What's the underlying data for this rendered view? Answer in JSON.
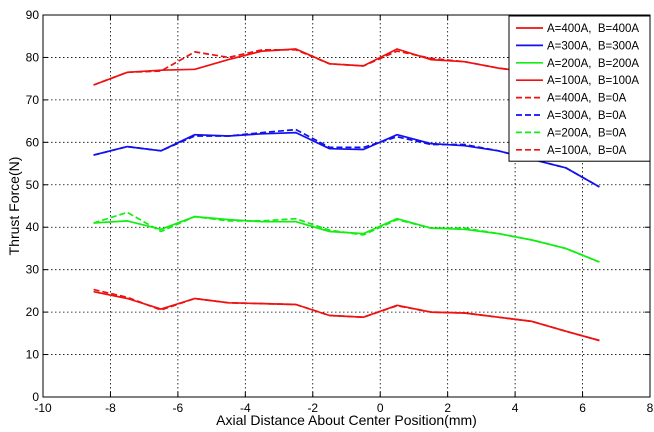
{
  "chart_data": {
    "type": "line",
    "xlabel": "Axial Distance About Center Position(mm)",
    "ylabel": "Thrust Force(N)",
    "xlim": [
      -10,
      8
    ],
    "ylim": [
      0,
      90
    ],
    "x_ticks": [
      -10,
      -8,
      -6,
      -4,
      -2,
      0,
      2,
      4,
      6,
      8
    ],
    "y_ticks": [
      0,
      10,
      20,
      30,
      40,
      50,
      60,
      70,
      80,
      90
    ],
    "grid": true,
    "legend_position": "top-right",
    "series": [
      {
        "name": "A=400A,  B=400A",
        "color": "#ee1111",
        "dash": "solid",
        "x": [
          -8.5,
          -7.5,
          -6.5,
          -5.5,
          -4.5,
          -3.5,
          -2.5,
          -1.5,
          -0.5,
          0.5,
          1.5,
          2.5,
          3.5,
          4.5
        ],
        "y": [
          73.5,
          76.5,
          77,
          77.2,
          79.5,
          81.5,
          82,
          78.5,
          78,
          82,
          79.5,
          79,
          77.5,
          76.5
        ]
      },
      {
        "name": "A=300A,  B=300A",
        "color": "#1111ee",
        "dash": "solid",
        "x": [
          -8.5,
          -7.5,
          -6.5,
          -5.5,
          -4.5,
          -3.5,
          -2.5,
          -1.5,
          -0.5,
          0.5,
          1.5,
          2.5,
          3.5,
          4.5,
          5.5,
          6.5
        ],
        "y": [
          57,
          59,
          58,
          61.8,
          61.5,
          62,
          62.3,
          58.5,
          58.3,
          61.8,
          59.7,
          59.2,
          58,
          56,
          54,
          49.5
        ]
      },
      {
        "name": "A=200A,  B=200A",
        "color": "#11ee11",
        "dash": "solid",
        "x": [
          -8.5,
          -7.5,
          -6.5,
          -5.5,
          -4.5,
          -3.5,
          -2.5,
          -1.5,
          -0.5,
          0.5,
          1.5,
          2.5,
          3.5,
          4.5,
          5.5,
          6.5
        ],
        "y": [
          41,
          41.5,
          39.5,
          42.5,
          41.8,
          41.3,
          41.3,
          39,
          38.5,
          42,
          39.8,
          39.5,
          38.5,
          37,
          35,
          31.8
        ]
      },
      {
        "name": "A=100A,  B=100A",
        "color": "#ee1111",
        "dash": "solid",
        "x": [
          -8.5,
          -7.5,
          -6.5,
          -5.5,
          -4.5,
          -3.5,
          -2.5,
          -1.5,
          -0.5,
          0.5,
          1.5,
          2.5,
          3.5,
          4.5,
          5.5,
          6.5
        ],
        "y": [
          24.8,
          23.2,
          20.7,
          23.2,
          22.2,
          22,
          21.8,
          19.2,
          18.8,
          21.6,
          20,
          19.8,
          18.8,
          17.8,
          15.5,
          13.3
        ]
      },
      {
        "name": "A=400A,  B=0A",
        "color": "#ee1111",
        "dash": "dashed",
        "x": [
          -8.5,
          -7.5,
          -6.5,
          -5.5,
          -4.5,
          -3.5,
          -2.5,
          -1.5,
          -0.5,
          0.5,
          1.5,
          2.5,
          3.5,
          4.5
        ],
        "y": [
          73.5,
          76.5,
          76.8,
          81.3,
          80,
          81.8,
          81.8,
          78.5,
          78,
          81.5,
          79.8,
          79,
          77.5,
          76.5
        ]
      },
      {
        "name": "A=300A,  B=0A",
        "color": "#1111ee",
        "dash": "dashed",
        "x": [
          -8.5,
          -7.5,
          -6.5,
          -5.5,
          -4.5,
          -3.5,
          -2.5,
          -1.5,
          -0.5,
          0.5,
          1.5,
          2.5,
          3.5,
          4.5,
          5.5,
          6.5
        ],
        "y": [
          57,
          59,
          58,
          61.5,
          61.5,
          62.3,
          63,
          58.8,
          58.8,
          61.3,
          59.5,
          59.5,
          58,
          56,
          54,
          49.5
        ]
      },
      {
        "name": "A=200A,  B=0A",
        "color": "#11ee11",
        "dash": "dashed",
        "x": [
          -8.5,
          -7.5,
          -6.5,
          -5.5,
          -4.5,
          -3.5,
          -2.5,
          -1.5,
          -0.5,
          0.5,
          1.5,
          2.5,
          3.5,
          4.5,
          5.5,
          6.5
        ],
        "y": [
          41,
          43.5,
          39,
          42.5,
          41.5,
          41.5,
          42,
          39.3,
          38.2,
          41.8,
          39.8,
          39.8,
          38.5,
          37,
          35,
          31.8
        ]
      },
      {
        "name": "A=100A,  B=0A",
        "color": "#ee1111",
        "dash": "dashed",
        "x": [
          -8.5,
          -7.5,
          -6.5,
          -5.5,
          -4.5,
          -3.5,
          -2.5,
          -1.5,
          -0.5,
          0.5,
          1.5,
          2.5,
          3.5,
          4.5,
          5.5,
          6.5
        ],
        "y": [
          25.3,
          23.5,
          20.5,
          23.2,
          22.2,
          22,
          21.8,
          19.2,
          18.8,
          21.5,
          20,
          19.8,
          18.8,
          17.8,
          15.5,
          13.3
        ]
      }
    ]
  }
}
